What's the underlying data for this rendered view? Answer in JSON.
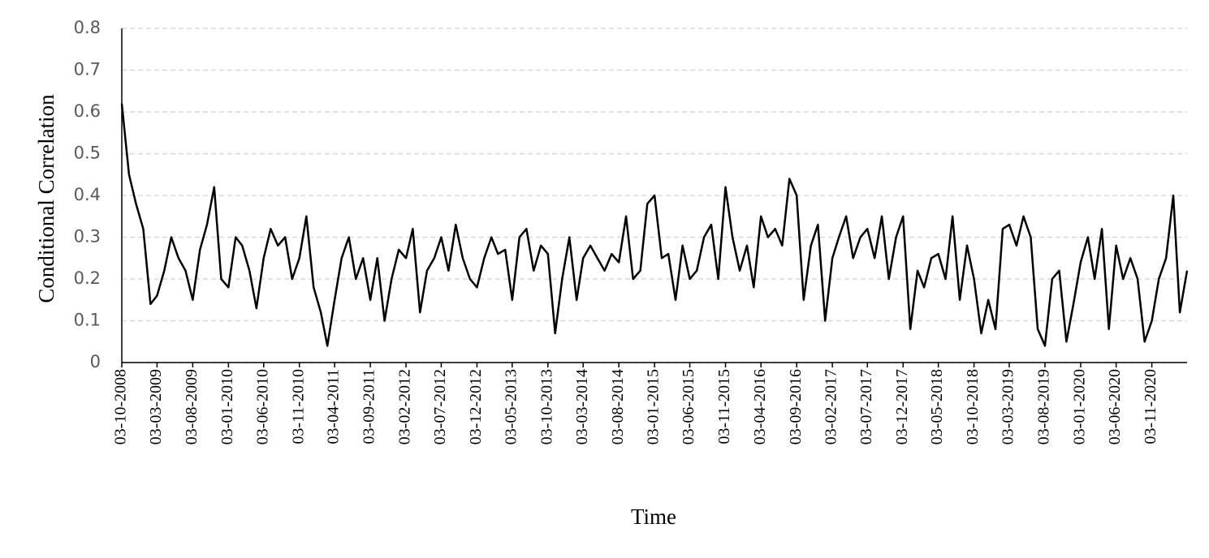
{
  "chart_data": {
    "type": "line",
    "y_label": "Conditional Correlation",
    "x_label": "Time",
    "x": [
      "03-10-2008",
      "03-11-2008",
      "03-12-2008",
      "03-01-2009",
      "03-02-2009",
      "03-03-2009",
      "03-04-2009",
      "03-05-2009",
      "03-06-2009",
      "03-07-2009",
      "03-08-2009",
      "03-09-2009",
      "03-10-2009",
      "03-11-2009",
      "03-12-2009",
      "03-01-2010",
      "03-02-2010",
      "03-03-2010",
      "03-04-2010",
      "03-05-2010",
      "03-06-2010",
      "03-07-2010",
      "03-08-2010",
      "03-09-2010",
      "03-10-2010",
      "03-11-2010",
      "03-12-2010",
      "03-01-2011",
      "03-02-2011",
      "03-03-2011",
      "03-04-2011",
      "03-05-2011",
      "03-06-2011",
      "03-07-2011",
      "03-08-2011",
      "03-09-2011",
      "03-10-2011",
      "03-11-2011",
      "03-12-2011",
      "03-01-2012",
      "03-02-2012",
      "03-03-2012",
      "03-04-2012",
      "03-05-2012",
      "03-06-2012",
      "03-07-2012",
      "03-08-2012",
      "03-09-2012",
      "03-10-2012",
      "03-11-2012",
      "03-12-2012",
      "03-01-2013",
      "03-02-2013",
      "03-03-2013",
      "03-04-2013",
      "03-05-2013",
      "03-06-2013",
      "03-07-2013",
      "03-08-2013",
      "03-09-2013",
      "03-10-2013",
      "03-11-2013",
      "03-12-2013",
      "03-01-2014",
      "03-02-2014",
      "03-03-2014",
      "03-04-2014",
      "03-05-2014",
      "03-06-2014",
      "03-07-2014",
      "03-08-2014",
      "03-09-2014",
      "03-10-2014",
      "03-11-2014",
      "03-12-2014",
      "03-01-2015",
      "03-02-2015",
      "03-03-2015",
      "03-04-2015",
      "03-05-2015",
      "03-06-2015",
      "03-07-2015",
      "03-08-2015",
      "03-09-2015",
      "03-10-2015",
      "03-11-2015",
      "03-12-2015",
      "03-01-2016",
      "03-02-2016",
      "03-03-2016",
      "03-04-2016",
      "03-05-2016",
      "03-06-2016",
      "03-07-2016",
      "03-08-2016",
      "03-09-2016",
      "03-10-2016",
      "03-11-2016",
      "03-12-2016",
      "03-01-2017",
      "03-02-2017",
      "03-03-2017",
      "03-04-2017",
      "03-05-2017",
      "03-06-2017",
      "03-07-2017",
      "03-08-2017",
      "03-09-2017",
      "03-10-2017",
      "03-11-2017",
      "03-12-2017",
      "03-01-2018",
      "03-02-2018",
      "03-03-2018",
      "03-04-2018",
      "03-05-2018",
      "03-06-2018",
      "03-07-2018",
      "03-08-2018",
      "03-09-2018",
      "03-10-2018",
      "03-11-2018",
      "03-12-2018",
      "03-01-2019",
      "03-02-2019",
      "03-03-2019",
      "03-04-2019",
      "03-05-2019",
      "03-06-2019",
      "03-07-2019",
      "03-08-2019",
      "03-09-2019",
      "03-10-2019",
      "03-11-2019",
      "03-12-2019",
      "03-01-2020",
      "03-02-2020",
      "03-03-2020",
      "03-04-2020",
      "03-05-2020",
      "03-06-2020",
      "03-07-2020",
      "03-08-2020",
      "03-09-2020",
      "03-10-2020",
      "03-11-2020",
      "03-12-2020",
      "03-01-2021",
      "03-02-2021",
      "03-03-2021",
      "03-04-2021"
    ],
    "series": [
      {
        "name": "Conditional Correlation",
        "color": "#000000",
        "values": [
          0.62,
          0.45,
          0.38,
          0.32,
          0.14,
          0.16,
          0.22,
          0.3,
          0.25,
          0.22,
          0.15,
          0.27,
          0.33,
          0.42,
          0.2,
          0.18,
          0.3,
          0.28,
          0.22,
          0.13,
          0.25,
          0.32,
          0.28,
          0.3,
          0.2,
          0.25,
          0.35,
          0.18,
          0.12,
          0.04,
          0.15,
          0.25,
          0.3,
          0.2,
          0.25,
          0.15,
          0.25,
          0.1,
          0.2,
          0.27,
          0.25,
          0.32,
          0.12,
          0.22,
          0.25,
          0.3,
          0.22,
          0.33,
          0.25,
          0.2,
          0.18,
          0.25,
          0.3,
          0.26,
          0.27,
          0.15,
          0.3,
          0.32,
          0.22,
          0.28,
          0.26,
          0.07,
          0.2,
          0.3,
          0.15,
          0.25,
          0.28,
          0.25,
          0.22,
          0.26,
          0.24,
          0.35,
          0.2,
          0.22,
          0.38,
          0.4,
          0.25,
          0.26,
          0.15,
          0.28,
          0.2,
          0.22,
          0.3,
          0.33,
          0.2,
          0.42,
          0.3,
          0.22,
          0.28,
          0.18,
          0.35,
          0.3,
          0.32,
          0.28,
          0.44,
          0.4,
          0.15,
          0.28,
          0.33,
          0.1,
          0.25,
          0.3,
          0.35,
          0.25,
          0.3,
          0.32,
          0.25,
          0.35,
          0.2,
          0.3,
          0.35,
          0.08,
          0.22,
          0.18,
          0.25,
          0.26,
          0.2,
          0.35,
          0.15,
          0.28,
          0.2,
          0.07,
          0.15,
          0.08,
          0.32,
          0.33,
          0.28,
          0.35,
          0.3,
          0.08,
          0.04,
          0.2,
          0.22,
          0.05,
          0.14,
          0.24,
          0.3,
          0.2,
          0.32,
          0.08,
          0.28,
          0.2,
          0.25,
          0.2,
          0.05,
          0.1,
          0.2,
          0.25,
          0.4,
          0.12,
          0.22
        ]
      }
    ],
    "xlim": [
      "03-10-2008",
      "03-04-2021"
    ],
    "xticks": [
      "03-10-2008",
      "03-03-2009",
      "03-08-2009",
      "03-01-2010",
      "03-06-2010",
      "03-11-2010",
      "03-04-2011",
      "03-09-2011",
      "03-02-2012",
      "03-07-2012",
      "03-12-2012",
      "03-05-2013",
      "03-10-2013",
      "03-03-2014",
      "03-08-2014",
      "03-01-2015",
      "03-06-2015",
      "03-11-2015",
      "03-04-2016",
      "03-09-2016",
      "03-02-2017",
      "03-07-2017",
      "03-12-2017",
      "03-05-2018",
      "03-10-2018",
      "03-03-2019",
      "03-08-2019",
      "03-01-2020",
      "03-06-2020",
      "03-11-2020"
    ],
    "ylim": [
      0,
      0.8
    ],
    "yticks": [
      0,
      0.1,
      0.2,
      0.3,
      0.4,
      0.5,
      0.6,
      0.7,
      0.8
    ],
    "grid": true
  }
}
